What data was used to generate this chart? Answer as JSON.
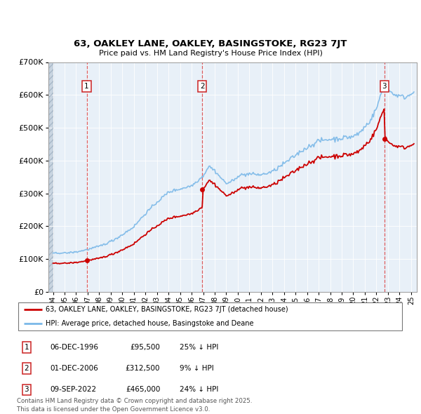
{
  "title1": "63, OAKLEY LANE, OAKLEY, BASINGSTOKE, RG23 7JT",
  "title2": "Price paid vs. HM Land Registry's House Price Index (HPI)",
  "legend_red": "63, OAKLEY LANE, OAKLEY, BASINGSTOKE, RG23 7JT (detached house)",
  "legend_blue": "HPI: Average price, detached house, Basingstoke and Deane",
  "footer": "Contains HM Land Registry data © Crown copyright and database right 2025.\nThis data is licensed under the Open Government Licence v3.0.",
  "transactions": [
    {
      "num": 1,
      "date": "06-DEC-1996",
      "date_float": 1996.917,
      "price": 95500,
      "pct": "25% ↓ HPI"
    },
    {
      "num": 2,
      "date": "01-DEC-2006",
      "date_float": 2006.917,
      "price": 312500,
      "pct": "9% ↓ HPI"
    },
    {
      "num": 3,
      "date": "09-SEP-2022",
      "date_float": 2022.69,
      "price": 465000,
      "pct": "24% ↓ HPI"
    }
  ],
  "hpi_color": "#7ab8e8",
  "price_color": "#cc0000",
  "dashed_color": "#dd4444",
  "background_color": "#e8f0f8",
  "ylim_max": 700000,
  "xlim_min": 1993.6,
  "xlim_max": 2025.5
}
